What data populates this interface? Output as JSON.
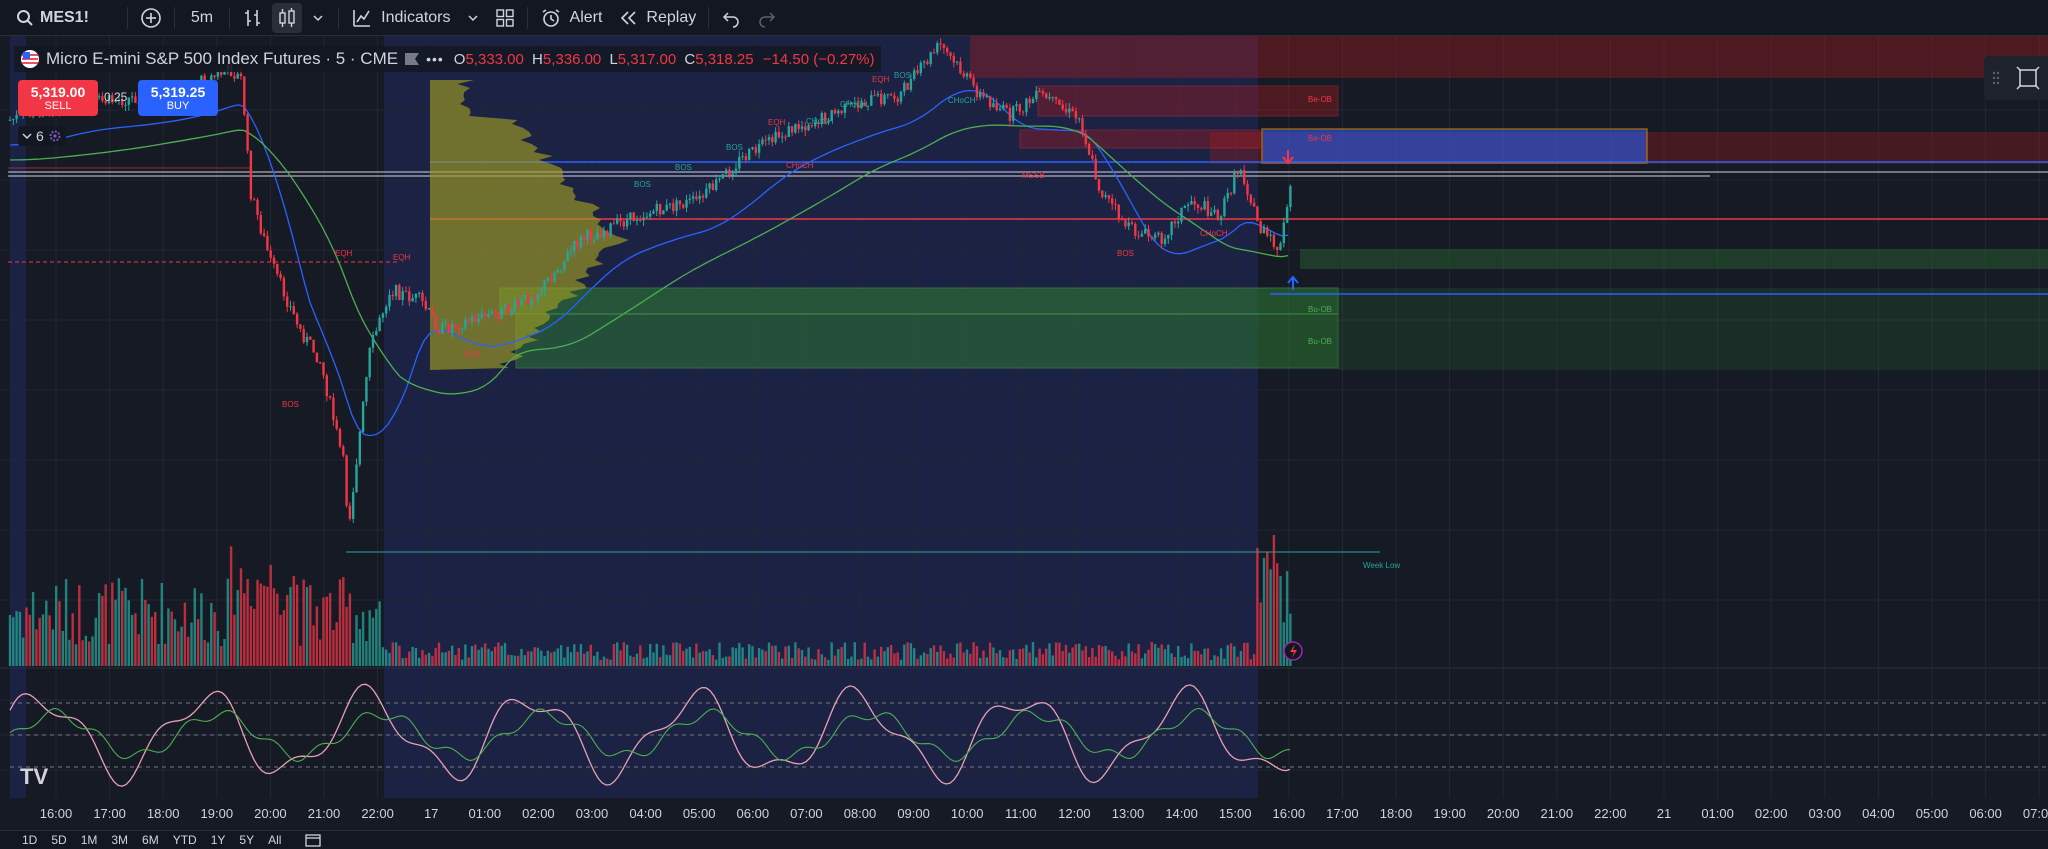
{
  "toolbar": {
    "symbol": "MES1!",
    "interval": "5m",
    "indicators_label": "Indicators",
    "alert_label": "Alert",
    "replay_label": "Replay"
  },
  "legend": {
    "title": "Micro E-mini S&P 500 Index Futures · 5 · CME",
    "o_label": "O",
    "o": "5,333.00",
    "h_label": "H",
    "h": "5,336.00",
    "l_label": "L",
    "l": "5,317.00",
    "c_label": "C",
    "c": "5,318.25",
    "change": "−14.50 (−0.27%)"
  },
  "trade": {
    "sell_price": "5,319.00",
    "sell_label": "SELL",
    "spread": "0.25",
    "buy_price": "5,319.25",
    "buy_label": "BUY"
  },
  "indicator_count": "6",
  "chart_labels": {
    "eqh": "EQH",
    "bos": "BOS",
    "choch": "CHoCH",
    "mssb": "MSSB",
    "be_ob": "Be-OB",
    "bu_ob": "Bu-OB",
    "week_low": "Week Low"
  },
  "time_axis": [
    "16:00",
    "17:00",
    "18:00",
    "19:00",
    "20:00",
    "21:00",
    "22:00",
    "17",
    "01:00",
    "02:00",
    "03:00",
    "04:00",
    "05:00",
    "06:00",
    "07:00",
    "08:00",
    "09:00",
    "10:00",
    "11:00",
    "12:00",
    "13:00",
    "14:00",
    "15:00",
    "16:00",
    "17:00",
    "18:00",
    "19:00",
    "20:00",
    "21:00",
    "22:00",
    "21",
    "01:00",
    "02:00",
    "03:00",
    "04:00",
    "05:00",
    "06:00",
    "07:00"
  ],
  "bottom_bar": [
    "1D",
    "5D",
    "1M",
    "3M",
    "6M",
    "YTD",
    "1Y",
    "5Y",
    "All"
  ],
  "logo_text": "TV",
  "colors": {
    "up": "#26a69a",
    "down": "#f23645",
    "background": "#161a25",
    "session_bg": "#1c2447",
    "bull_zone": "#2e7d32",
    "bear_zone": "#b71c1c",
    "blue_zone": "#2962ff",
    "ema_blue": "#2962ff",
    "ema_green": "#4caf50",
    "stoch_k": "#e8a0b4",
    "stoch_d": "#4caf50"
  }
}
